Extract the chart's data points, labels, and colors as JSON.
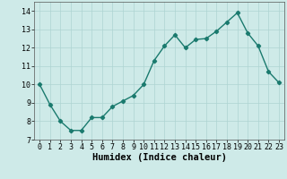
{
  "x": [
    0,
    1,
    2,
    3,
    4,
    5,
    6,
    7,
    8,
    9,
    10,
    11,
    12,
    13,
    14,
    15,
    16,
    17,
    18,
    19,
    20,
    21,
    22,
    23
  ],
  "y": [
    10.0,
    8.9,
    8.0,
    7.5,
    7.5,
    8.2,
    8.2,
    8.8,
    9.1,
    9.4,
    10.0,
    11.3,
    12.1,
    12.7,
    12.0,
    12.45,
    12.5,
    12.9,
    13.4,
    13.9,
    12.8,
    12.1,
    10.7,
    10.1
  ],
  "line_color": "#1a7a6e",
  "marker": "D",
  "marker_size": 2.2,
  "bg_color": "#ceeae8",
  "grid_color": "#aed4d2",
  "xlabel": "Humidex (Indice chaleur)",
  "xlabel_fontsize": 7.5,
  "xlim": [
    -0.5,
    23.5
  ],
  "ylim": [
    7,
    14.5
  ],
  "yticks": [
    7,
    8,
    9,
    10,
    11,
    12,
    13,
    14
  ],
  "xticks": [
    0,
    1,
    2,
    3,
    4,
    5,
    6,
    7,
    8,
    9,
    10,
    11,
    12,
    13,
    14,
    15,
    16,
    17,
    18,
    19,
    20,
    21,
    22,
    23
  ],
  "tick_fontsize": 6,
  "line_width": 1.0
}
